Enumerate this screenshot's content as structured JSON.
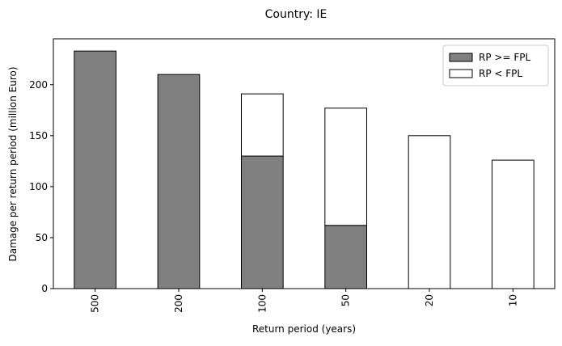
{
  "chart_data": {
    "type": "bar",
    "stacked": true,
    "title": "Country: IE",
    "xlabel": "Return period (years)",
    "ylabel": "Damage per return period (million Euro)",
    "categories": [
      "500",
      "200",
      "100",
      "50",
      "20",
      "10"
    ],
    "series": [
      {
        "name": "RP >= FPL",
        "color": "#808080",
        "values": [
          233,
          210,
          130,
          62,
          0,
          0
        ]
      },
      {
        "name": "RP < FPL",
        "color": "#ffffff",
        "values": [
          0,
          0,
          61,
          115,
          150,
          126
        ]
      }
    ],
    "ylim": [
      0,
      245
    ],
    "yticks": [
      0,
      50,
      100,
      150,
      200
    ],
    "grid": false,
    "legend_position": "top-right"
  }
}
